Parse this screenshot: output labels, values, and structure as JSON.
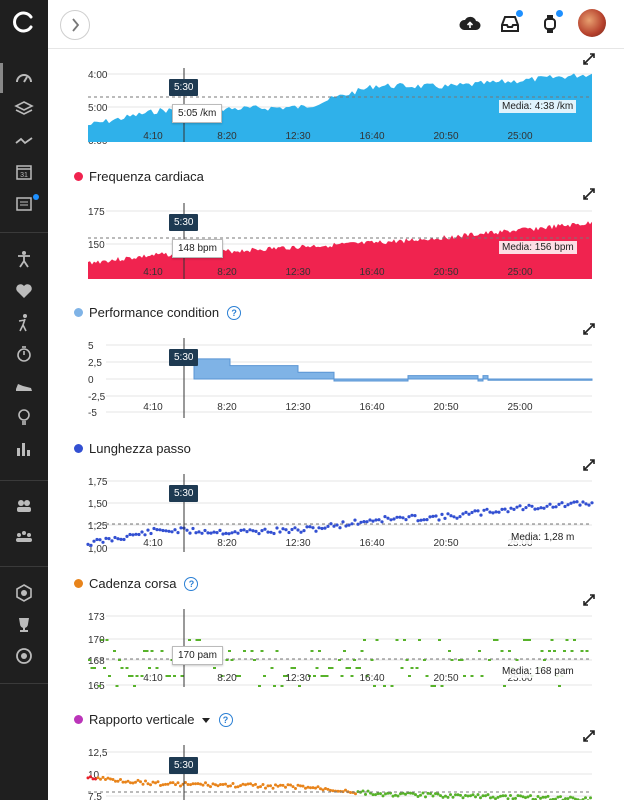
{
  "sidebar": {
    "items": [
      "dashboard-icon",
      "layers-icon",
      "activity-icon",
      "calendar-icon",
      "news-icon",
      "exercise-icon",
      "heart-icon",
      "golf-icon",
      "stopwatch-icon",
      "shoe-icon",
      "bulb-icon",
      "bar-chart-icon",
      "groups-icon",
      "connections-icon",
      "badges-icon",
      "trophy-icon",
      "target-icon"
    ],
    "calendar_day": "31"
  },
  "topbar": {
    "icons": [
      "upload-icon",
      "inbox-icon",
      "watch-icon"
    ]
  },
  "colors": {
    "pace": "#2fb1ea",
    "heart": "#f0234f",
    "performance": "#7fb3e6",
    "stride": "#3350d2",
    "cadence": "#e8841b",
    "cadence_points": "#57b22a",
    "vertical": "#bb35b9",
    "cursor_bg": "#1e3a52"
  },
  "cursor_time": "5:30",
  "x_ticks": [
    "4:10",
    "8:20",
    "12:30",
    "16:40",
    "20:50",
    "25:00"
  ],
  "charts": {
    "pace": {
      "y_ticks": [
        "4:00",
        "5:00",
        "6:00"
      ],
      "tooltip": "5:05 /km",
      "average": "Media: 4:38 /km",
      "chart_data": {
        "type": "area",
        "y_unit": "min/km",
        "x": [
          "0:00",
          "4:10",
          "8:20",
          "12:30",
          "16:40",
          "20:50",
          "25:00",
          "29:00"
        ],
        "series": [
          {
            "values": [
              5.55,
              5.1,
              5.05,
              5.0,
              4.35,
              4.38,
              4.2,
              4.0
            ]
          }
        ],
        "ylim": [
          6.0,
          4.0
        ]
      }
    },
    "heart": {
      "title": "Frequenza cardiaca",
      "y_ticks": [
        "175",
        "150",
        "125"
      ],
      "tooltip": "148 bpm",
      "average": "Media: 156 bpm",
      "chart_data": {
        "type": "area",
        "x": [
          "0:00",
          "4:10",
          "8:20",
          "12:30",
          "16:40",
          "20:50",
          "25:00",
          "29:00"
        ],
        "series": [
          {
            "values": [
              138,
              145,
              148,
              152,
              155,
              160,
              166,
              172
            ]
          }
        ],
        "ylim": [
          125,
          185
        ]
      }
    },
    "performance": {
      "title": "Performance condition",
      "y_ticks": [
        "5",
        "2,5",
        "0",
        "-2,5",
        "-5"
      ],
      "chart_data": {
        "type": "area",
        "x": [
          "6:00",
          "8:00",
          "12:30",
          "14:50",
          "20:40",
          "22:40",
          "23:00",
          "29:00"
        ],
        "series": [
          {
            "values": [
              3,
              2,
              1,
              -0.3,
              0.5,
              -0.3,
              0.5,
              -0.2
            ]
          }
        ],
        "ylim": [
          -5,
          5
        ]
      }
    },
    "stride": {
      "title": "Lunghezza passo",
      "y_ticks": [
        "1,75",
        "1,50",
        "1,25",
        "1,00"
      ],
      "average": "Media: 1,28 m",
      "chart_data": {
        "type": "scatter",
        "x": [
          "0:00",
          "4:10",
          "8:20",
          "12:30",
          "16:40",
          "20:50",
          "25:00",
          "29:00"
        ],
        "series": [
          {
            "values": [
              1.05,
              1.2,
              1.18,
              1.2,
              1.32,
              1.35,
              1.45,
              1.5
            ]
          }
        ],
        "ylim": [
          1.0,
          1.75
        ]
      }
    },
    "cadence": {
      "title": "Cadenza corsa",
      "y_ticks": [
        "173",
        "170",
        "168",
        "165"
      ],
      "tooltip": "170 pam",
      "average": "Media: 168 pam",
      "chart_data": {
        "type": "scatter",
        "x": [
          "0:00",
          "4:10",
          "8:20",
          "12:30",
          "16:40",
          "20:50",
          "25:00",
          "29:00"
        ],
        "series": [
          {
            "values": [
              168,
              169,
              168,
              168,
              167,
              168,
              168,
              167
            ]
          }
        ],
        "ylim": [
          165,
          173
        ]
      }
    },
    "vertical": {
      "title": "Rapporto verticale",
      "y_ticks": [
        "12,5",
        "10",
        "7,5"
      ],
      "chart_data": {
        "type": "scatter",
        "x": [
          "0:00",
          "4:10",
          "8:20",
          "12:30",
          "16:40",
          "20:50",
          "25:00",
          "29:00"
        ],
        "series": [
          {
            "values": [
              9.5,
              8.8,
              8.6,
              8.4,
              7.6,
              7.4,
              7.2,
              7.0
            ]
          }
        ],
        "ylim": [
          7.0,
          12.5
        ]
      }
    }
  }
}
